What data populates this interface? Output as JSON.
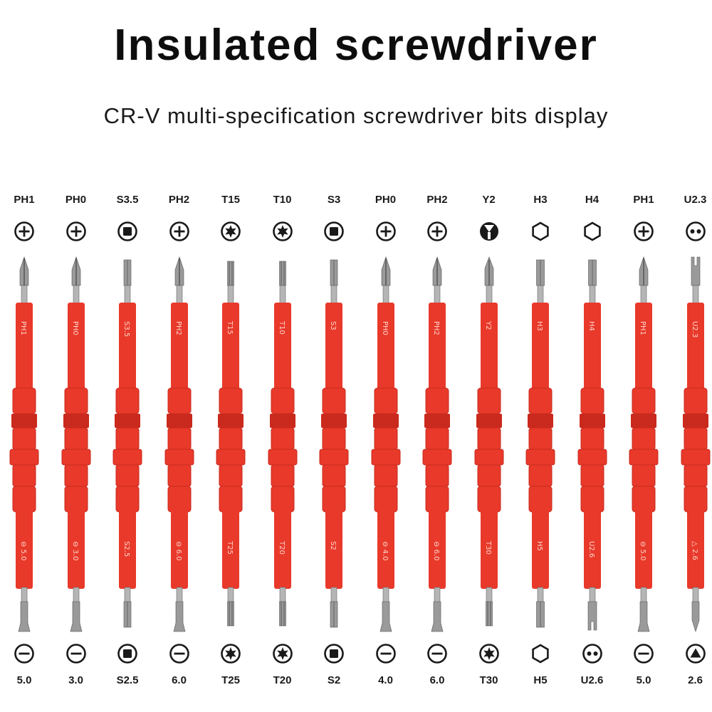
{
  "title": "Insulated screwdriver",
  "subtitle": "CR-V multi-specification screwdriver bits display",
  "colors": {
    "handle": "#e8392a",
    "handle_dark": "#c92a1d",
    "steel": "#8a8a8a"
  },
  "bits": [
    {
      "top_label": "PH1",
      "top_icon": "phillips-icon",
      "top_etch": "PH1",
      "bottom_etch": "⊖ 5.0",
      "bottom_icon": "slotted-icon",
      "bottom_label": "5.0"
    },
    {
      "top_label": "PH0",
      "top_icon": "phillips-icon",
      "top_etch": "PH0",
      "bottom_etch": "⊖ 3.0",
      "bottom_icon": "slotted-icon",
      "bottom_label": "3.0"
    },
    {
      "top_label": "S3.5",
      "top_icon": "square-icon",
      "top_etch": "S3.5",
      "bottom_etch": "S2.5",
      "bottom_icon": "square-icon",
      "bottom_label": "S2.5"
    },
    {
      "top_label": "PH2",
      "top_icon": "phillips-icon",
      "top_etch": "PH2",
      "bottom_etch": "⊖ 6.0",
      "bottom_icon": "slotted-icon",
      "bottom_label": "6.0"
    },
    {
      "top_label": "T15",
      "top_icon": "torx-icon",
      "top_etch": "T15",
      "bottom_etch": "T25",
      "bottom_icon": "torx-icon",
      "bottom_label": "T25"
    },
    {
      "top_label": "T10",
      "top_icon": "torx-icon",
      "top_etch": "T10",
      "bottom_etch": "T20",
      "bottom_icon": "torx-icon",
      "bottom_label": "T20"
    },
    {
      "top_label": "S3",
      "top_icon": "square-icon",
      "top_etch": "S3",
      "bottom_etch": "S2",
      "bottom_icon": "square-icon",
      "bottom_label": "S2"
    },
    {
      "top_label": "PH0",
      "top_icon": "phillips-icon",
      "top_etch": "PH0",
      "bottom_etch": "⊖ 4.0",
      "bottom_icon": "slotted-icon",
      "bottom_label": "4.0"
    },
    {
      "top_label": "PH2",
      "top_icon": "phillips-icon",
      "top_etch": "PH2",
      "bottom_etch": "⊖ 6.0",
      "bottom_icon": "slotted-icon",
      "bottom_label": "6.0"
    },
    {
      "top_label": "Y2",
      "top_icon": "tri-wing-icon",
      "top_etch": "Y2",
      "bottom_etch": "T30",
      "bottom_icon": "torx-icon",
      "bottom_label": "T30"
    },
    {
      "top_label": "H3",
      "top_icon": "hex-icon",
      "top_etch": "H3",
      "bottom_etch": "H5",
      "bottom_icon": "hex-icon",
      "bottom_label": "H5"
    },
    {
      "top_label": "H4",
      "top_icon": "hex-icon",
      "top_etch": "H4",
      "bottom_etch": "U2.6",
      "bottom_icon": "spanner-icon",
      "bottom_label": "U2.6"
    },
    {
      "top_label": "PH1",
      "top_icon": "phillips-icon",
      "top_etch": "PH1",
      "bottom_etch": "⊖ 5.0",
      "bottom_icon": "slotted-icon",
      "bottom_label": "5.0"
    },
    {
      "top_label": "U2.3",
      "top_icon": "spanner-icon",
      "top_etch": "U2.3",
      "bottom_etch": "△ 2.6",
      "bottom_icon": "triangle-icon",
      "bottom_label": "2.6"
    }
  ]
}
